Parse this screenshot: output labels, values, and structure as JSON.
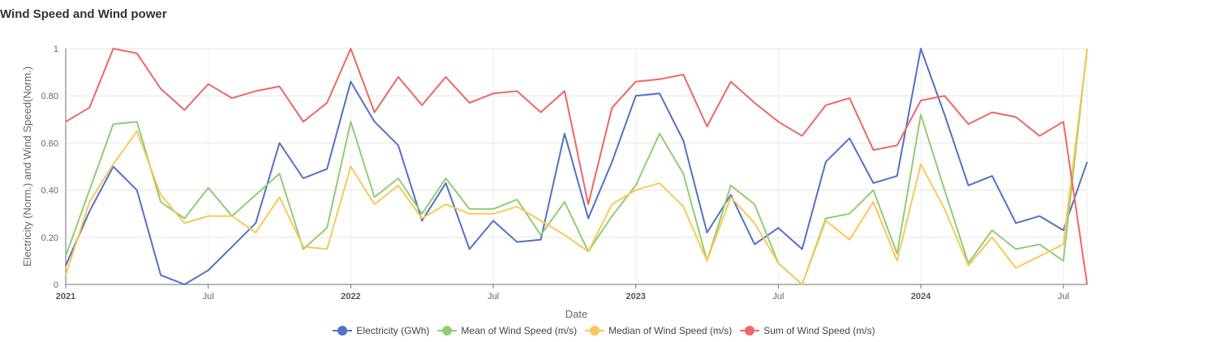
{
  "title": "Wind Speed and Wind power",
  "chart_data": {
    "type": "line",
    "title": "Wind Speed and Wind power",
    "xlabel": "Date",
    "ylabel": "Electricity (Norm.) and Wind Speed(Norm.)",
    "ylim": [
      0,
      1
    ],
    "y_ticks": [
      "0",
      "0.20",
      "0.40",
      "0.60",
      "0.80",
      "1"
    ],
    "x_range": [
      "2021-01",
      "2024-08"
    ],
    "x_ticks": [
      {
        "label": "2021",
        "month": "2021-01",
        "bold": true
      },
      {
        "label": "Jul",
        "month": "2021-07",
        "bold": false
      },
      {
        "label": "2022",
        "month": "2022-01",
        "bold": true
      },
      {
        "label": "Jul",
        "month": "2022-07",
        "bold": false
      },
      {
        "label": "2023",
        "month": "2023-01",
        "bold": true
      },
      {
        "label": "Jul",
        "month": "2023-07",
        "bold": false
      },
      {
        "label": "2024",
        "month": "2024-01",
        "bold": true
      },
      {
        "label": "Jul",
        "month": "2024-07",
        "bold": false
      }
    ],
    "grid": true,
    "legend_position": "bottom",
    "x": [
      "2021-01",
      "2021-02",
      "2021-03",
      "2021-04",
      "2021-05",
      "2021-06",
      "2021-07",
      "2021-08",
      "2021-09",
      "2021-10",
      "2021-11",
      "2021-12",
      "2022-01",
      "2022-02",
      "2022-03",
      "2022-04",
      "2022-05",
      "2022-06",
      "2022-07",
      "2022-08",
      "2022-09",
      "2022-10",
      "2022-11",
      "2022-12",
      "2023-01",
      "2023-02",
      "2023-03",
      "2023-04",
      "2023-05",
      "2023-06",
      "2023-07",
      "2023-08",
      "2023-09",
      "2023-10",
      "2023-11",
      "2023-12",
      "2024-01",
      "2024-02",
      "2024-03",
      "2024-04",
      "2024-05",
      "2024-06",
      "2024-07",
      "2024-08"
    ],
    "series": [
      {
        "name": "Electricity (GWh)",
        "color": "#5470c6",
        "values": [
          0.08,
          0.31,
          0.5,
          0.4,
          0.04,
          0.0,
          0.06,
          0.16,
          0.26,
          0.6,
          0.45,
          0.49,
          0.86,
          0.69,
          0.59,
          0.27,
          0.43,
          0.15,
          0.27,
          0.18,
          0.19,
          0.64,
          0.28,
          0.52,
          0.8,
          0.81,
          0.61,
          0.22,
          0.38,
          0.17,
          0.24,
          0.15,
          0.52,
          0.62,
          0.43,
          0.46,
          1.0,
          0.72,
          0.42,
          0.46,
          0.26,
          0.29,
          0.23,
          0.52
        ]
      },
      {
        "name": "Mean of Wind Speed (m/s)",
        "color": "#91cc75",
        "values": [
          0.12,
          0.4,
          0.68,
          0.69,
          0.35,
          0.28,
          0.41,
          0.29,
          0.38,
          0.47,
          0.15,
          0.24,
          0.69,
          0.37,
          0.45,
          0.3,
          0.45,
          0.32,
          0.32,
          0.36,
          0.21,
          0.35,
          0.14,
          0.29,
          0.42,
          0.64,
          0.47,
          0.1,
          0.42,
          0.34,
          0.09,
          0.0,
          0.28,
          0.3,
          0.4,
          0.13,
          0.72,
          0.4,
          0.09,
          0.23,
          0.15,
          0.17,
          0.1,
          1.0
        ]
      },
      {
        "name": "Median of Wind Speed (m/s)",
        "color": "#fac858",
        "values": [
          0.04,
          0.35,
          0.51,
          0.65,
          0.38,
          0.26,
          0.29,
          0.29,
          0.22,
          0.37,
          0.16,
          0.15,
          0.5,
          0.34,
          0.42,
          0.28,
          0.34,
          0.3,
          0.3,
          0.33,
          0.27,
          0.21,
          0.14,
          0.34,
          0.4,
          0.43,
          0.33,
          0.1,
          0.37,
          0.26,
          0.09,
          0.0,
          0.27,
          0.19,
          0.35,
          0.1,
          0.51,
          0.32,
          0.08,
          0.2,
          0.07,
          0.12,
          0.17,
          1.0
        ]
      },
      {
        "name": "Sum of Wind Speed (m/s)",
        "color": "#ee6666",
        "values": [
          0.69,
          0.75,
          1.0,
          0.98,
          0.83,
          0.74,
          0.85,
          0.79,
          0.82,
          0.84,
          0.69,
          0.77,
          1.0,
          0.73,
          0.88,
          0.76,
          0.88,
          0.77,
          0.81,
          0.82,
          0.73,
          0.82,
          0.34,
          0.75,
          0.86,
          0.87,
          0.89,
          0.67,
          0.86,
          0.77,
          0.69,
          0.63,
          0.76,
          0.79,
          0.57,
          0.59,
          0.78,
          0.8,
          0.68,
          0.73,
          0.71,
          0.63,
          0.69,
          0.0
        ]
      }
    ]
  }
}
